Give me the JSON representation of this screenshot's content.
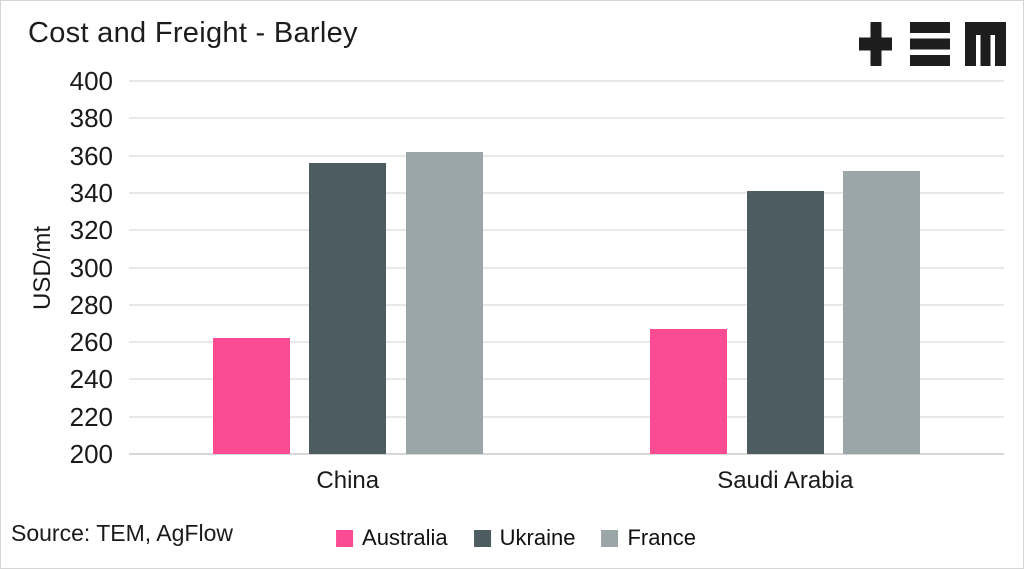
{
  "header": {
    "title": "Cost and Freight - Barley"
  },
  "logo": {
    "name": "TEM logo",
    "color": "#1d1d1d"
  },
  "footer": {
    "source": "Source: TEM, AgFlow"
  },
  "style": {
    "grid_color": "#e8e8e8",
    "baseline_color": "#d8d8d8",
    "text_color": "#1a1a1a",
    "background": "#ffffff"
  },
  "chart_data": {
    "type": "bar",
    "title": "Cost and Freight - Barley",
    "xlabel": "",
    "ylabel": "USD/mt",
    "ylim": [
      200,
      400
    ],
    "ytick_step": 20,
    "grid": "horizontal",
    "legend_position": "bottom-center",
    "categories": [
      "China",
      "Saudi Arabia"
    ],
    "series": [
      {
        "name": "Australia",
        "color": "#fb4b93",
        "values": [
          262,
          267
        ]
      },
      {
        "name": "Ukraine",
        "color": "#4c5c60",
        "values": [
          356,
          341
        ]
      },
      {
        "name": "France",
        "color": "#9ba6a8",
        "values": [
          362,
          352
        ]
      }
    ]
  }
}
